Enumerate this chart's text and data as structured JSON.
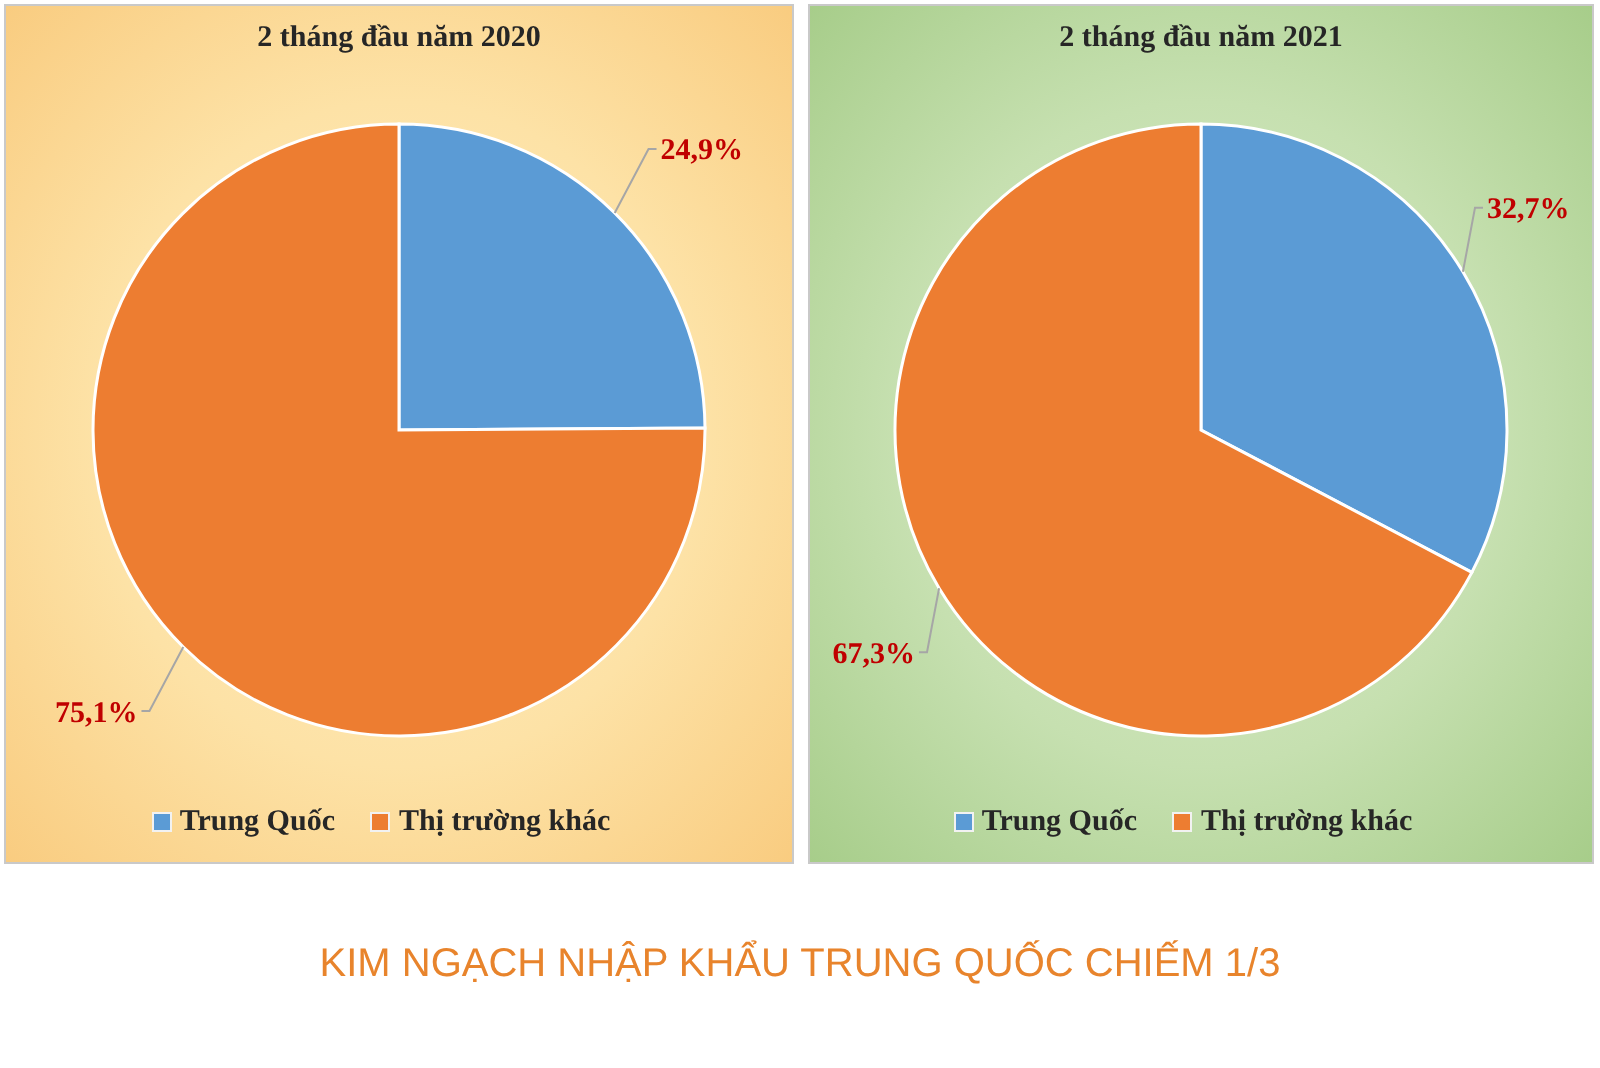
{
  "chart_data": [
    {
      "type": "pie",
      "title": "2 tháng đầu năm 2020",
      "categories": [
        "Trung Quốc",
        "Thị trường khác"
      ],
      "values": [
        24.9,
        75.1
      ],
      "colors": [
        "#5b9bd5",
        "#ed7d31"
      ],
      "value_labels": [
        "24,9%",
        "75,1%"
      ],
      "legend": "bottom"
    },
    {
      "type": "pie",
      "title": "2 tháng đầu năm 2021",
      "categories": [
        "Trung Quốc",
        "Thị trường khác"
      ],
      "values": [
        32.7,
        67.3
      ],
      "colors": [
        "#5b9bd5",
        "#ed7d31"
      ],
      "value_labels": [
        "32,7%",
        "67,3%"
      ],
      "legend": "bottom"
    },
    {
      "type": "other",
      "title": "KIM NGẠCH NHẬP KHẨU TRUNG QUỐC CHIẾM 1/3"
    }
  ]
}
